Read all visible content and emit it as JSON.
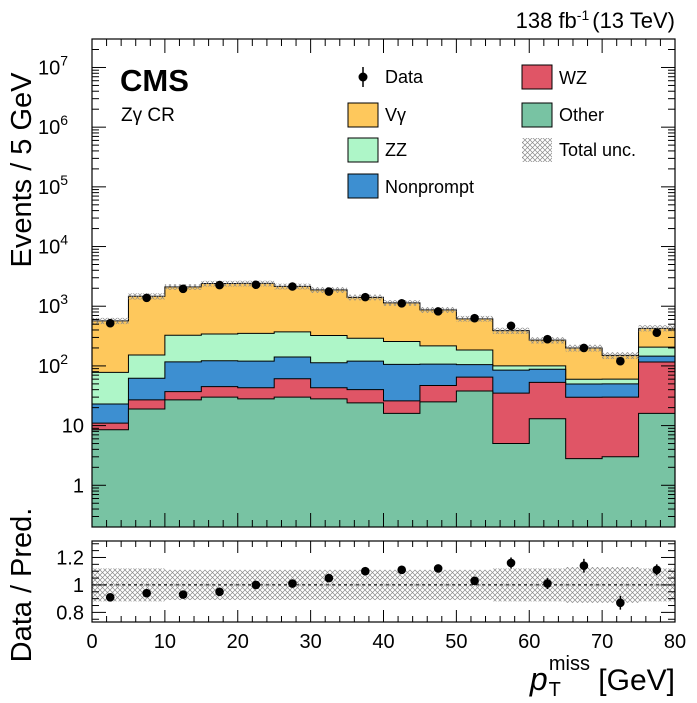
{
  "header": {
    "lumi": "138 fb",
    "lumi_sup": "-1",
    "energy": "(13 TeV)",
    "experiment": "CMS",
    "region": "Zγ CR"
  },
  "colors": {
    "vgamma": "#fec85c",
    "zz": "#aef6c8",
    "nonprompt": "#3d8fd1",
    "wz": "#e05566",
    "other": "#78c3a3",
    "data": "#000000"
  },
  "legend": {
    "data": "Data",
    "vgamma": "Vγ",
    "zz": "ZZ",
    "nonprompt": "Nonprompt",
    "wz": "WZ",
    "other": "Other",
    "unc": "Total unc."
  },
  "chart_data": {
    "type": "bar",
    "stacked": true,
    "yscale": "log",
    "bin_edges": [
      0,
      5,
      10,
      15,
      20,
      25,
      30,
      35,
      40,
      45,
      50,
      55,
      60,
      65,
      70,
      75,
      80
    ],
    "xlabel": "p",
    "xlabel_sub": "T",
    "xlabel_sup": "miss",
    "xlabel_unit": " [GeV]",
    "ylabel": "Events / 5 GeV",
    "ratio_ylabel": "Data / Pred.",
    "xlim": [
      0,
      80
    ],
    "ylim": [
      0.2,
      30000000
    ],
    "ratio_ylim": [
      0.73,
      1.32
    ],
    "xticks": [
      "0",
      "10",
      "20",
      "30",
      "40",
      "50",
      "60",
      "70",
      "80"
    ],
    "yticks": [
      "1",
      "10",
      "10",
      "10",
      "10",
      "10",
      "10",
      "10"
    ],
    "ytick_exps": [
      "",
      "",
      "2",
      "3",
      "4",
      "5",
      "6",
      "7"
    ],
    "ratio_yticks": [
      "0.8",
      "1",
      "1.2"
    ],
    "series": [
      {
        "name": "Other",
        "key": "other",
        "values": [
          8.5,
          19,
          27,
          30,
          28,
          30,
          28,
          24,
          16,
          25,
          38,
          5,
          13,
          2.8,
          3,
          16
        ]
      },
      {
        "name": "WZ",
        "key": "wz",
        "values": [
          2.5,
          8,
          10,
          15,
          15,
          31,
          15,
          16,
          10,
          22,
          27,
          30,
          40,
          27,
          27,
          100
        ]
      },
      {
        "name": "Nonprompt",
        "key": "nonprompt",
        "values": [
          12,
          35,
          80,
          77,
          77,
          80,
          70,
          80,
          80,
          60,
          40,
          50,
          35,
          20,
          20,
          30
        ]
      },
      {
        "name": "ZZ",
        "key": "zz",
        "values": [
          55,
          90,
          210,
          220,
          230,
          230,
          210,
          170,
          150,
          110,
          80,
          15,
          12,
          10,
          10,
          60
        ]
      },
      {
        "name": "Vγ",
        "key": "vgamma",
        "values": [
          490,
          1320,
          1780,
          2060,
          2060,
          1780,
          1560,
          1120,
          880,
          650,
          430,
          290,
          170,
          140,
          90,
          220
        ]
      }
    ],
    "totals": [
      570,
      1470,
      2110,
      2400,
      2410,
      2150,
      1880,
      1410,
      1140,
      870,
      620,
      390,
      270,
      200,
      150,
      430
    ],
    "data_points": [
      520,
      1380,
      1960,
      2260,
      2290,
      2140,
      1760,
      1420,
      1120,
      820,
      630,
      470,
      280,
      200,
      120,
      360
    ],
    "ratio": [
      0.91,
      0.94,
      0.93,
      0.95,
      1.0,
      1.01,
      1.05,
      1.1,
      1.11,
      1.12,
      1.03,
      1.16,
      1.01,
      1.14,
      0.87,
      1.11
    ],
    "ratio_err": [
      0.02,
      0.02,
      0.01,
      0.01,
      0.01,
      0.01,
      0.01,
      0.02,
      0.02,
      0.02,
      0.02,
      0.04,
      0.04,
      0.05,
      0.05,
      0.04
    ],
    "ratio_unc": [
      0.12,
      0.12,
      0.11,
      0.11,
      0.11,
      0.11,
      0.11,
      0.11,
      0.11,
      0.11,
      0.11,
      0.12,
      0.12,
      0.13,
      0.13,
      0.12
    ]
  }
}
